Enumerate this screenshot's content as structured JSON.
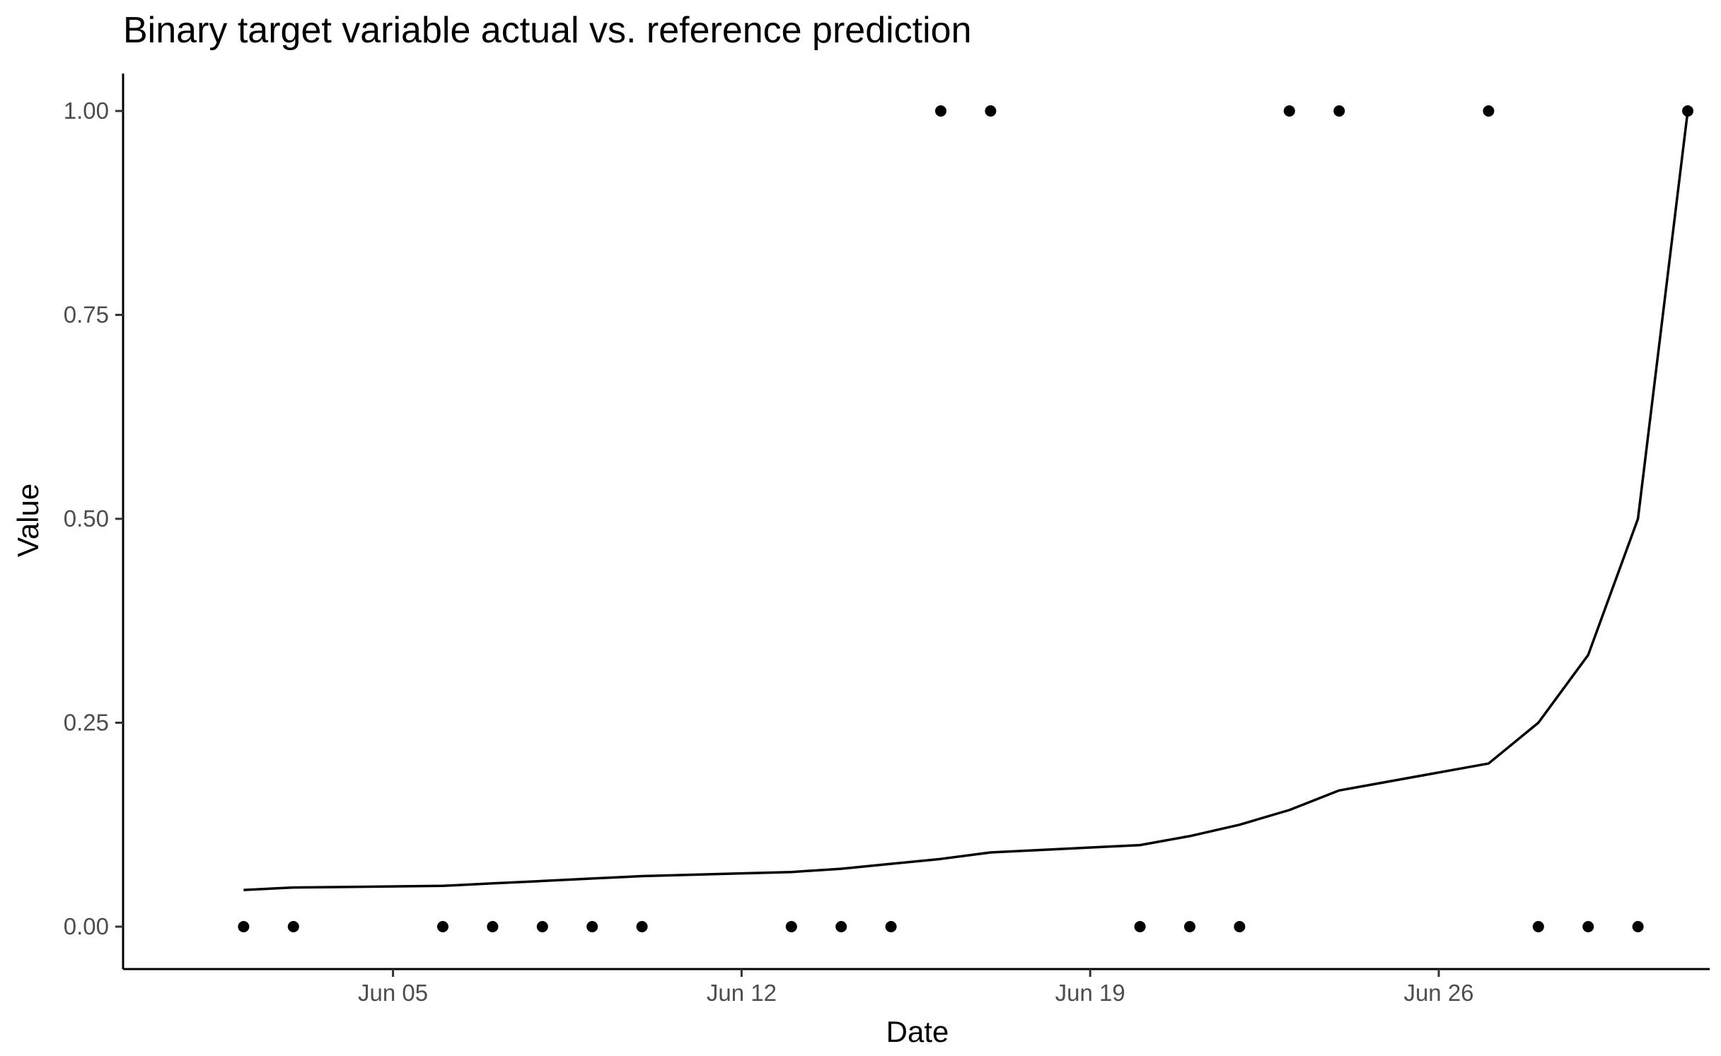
{
  "chart_data": {
    "type": "scatter",
    "title": "Binary target variable actual vs. reference prediction",
    "xlabel": "Date",
    "ylabel": "Value",
    "x_axis": {
      "scale": "date",
      "range": [
        "2021-06-01",
        "2021-06-30"
      ],
      "ticks": [
        "2021-06-05",
        "2021-06-12",
        "2021-06-19",
        "2021-06-26"
      ],
      "tick_labels": [
        "Jun 05",
        "Jun 12",
        "Jun 19",
        "Jun 26"
      ]
    },
    "y_axis": {
      "range": [
        -0.05,
        1.05
      ],
      "ticks": [
        0,
        0.25,
        0.5,
        0.75,
        1.0
      ],
      "tick_labels": [
        "0.00",
        "0.25",
        "0.50",
        "0.75",
        "1.00"
      ]
    },
    "grid": false,
    "legend": "none",
    "series": [
      {
        "kind": "points",
        "color": "#000000",
        "data": [
          {
            "date": "2021-06-02",
            "value": 0
          },
          {
            "date": "2021-06-03",
            "value": 0
          },
          {
            "date": "2021-06-06",
            "value": 0
          },
          {
            "date": "2021-06-07",
            "value": 0
          },
          {
            "date": "2021-06-08",
            "value": 0
          },
          {
            "date": "2021-06-09",
            "value": 0
          },
          {
            "date": "2021-06-10",
            "value": 0
          },
          {
            "date": "2021-06-13",
            "value": 0
          },
          {
            "date": "2021-06-14",
            "value": 0
          },
          {
            "date": "2021-06-15",
            "value": 0
          },
          {
            "date": "2021-06-16",
            "value": 1
          },
          {
            "date": "2021-06-17",
            "value": 1
          },
          {
            "date": "2021-06-20",
            "value": 0
          },
          {
            "date": "2021-06-21",
            "value": 0
          },
          {
            "date": "2021-06-22",
            "value": 0
          },
          {
            "date": "2021-06-23",
            "value": 1
          },
          {
            "date": "2021-06-24",
            "value": 1
          },
          {
            "date": "2021-06-27",
            "value": 1
          },
          {
            "date": "2021-06-28",
            "value": 0
          },
          {
            "date": "2021-06-29",
            "value": 0
          },
          {
            "date": "2021-06-30",
            "value": 0
          },
          {
            "date": "2021-07-01",
            "value": 1
          }
        ]
      },
      {
        "kind": "line",
        "color": "#000000",
        "data": [
          {
            "date": "2021-06-02",
            "value": 0.045
          },
          {
            "date": "2021-06-03",
            "value": 0.048
          },
          {
            "date": "2021-06-06",
            "value": 0.05
          },
          {
            "date": "2021-06-07",
            "value": 0.053
          },
          {
            "date": "2021-06-08",
            "value": 0.056
          },
          {
            "date": "2021-06-09",
            "value": 0.059
          },
          {
            "date": "2021-06-10",
            "value": 0.062
          },
          {
            "date": "2021-06-13",
            "value": 0.067
          },
          {
            "date": "2021-06-14",
            "value": 0.071
          },
          {
            "date": "2021-06-15",
            "value": 0.077
          },
          {
            "date": "2021-06-16",
            "value": 0.083
          },
          {
            "date": "2021-06-17",
            "value": 0.091
          },
          {
            "date": "2021-06-20",
            "value": 0.1
          },
          {
            "date": "2021-06-21",
            "value": 0.111
          },
          {
            "date": "2021-06-22",
            "value": 0.125
          },
          {
            "date": "2021-06-23",
            "value": 0.143
          },
          {
            "date": "2021-06-24",
            "value": 0.167
          },
          {
            "date": "2021-06-27",
            "value": 0.2
          },
          {
            "date": "2021-06-28",
            "value": 0.25
          },
          {
            "date": "2021-06-29",
            "value": 0.333
          },
          {
            "date": "2021-06-30",
            "value": 0.5
          },
          {
            "date": "2021-07-01",
            "value": 1.0
          }
        ]
      }
    ]
  }
}
